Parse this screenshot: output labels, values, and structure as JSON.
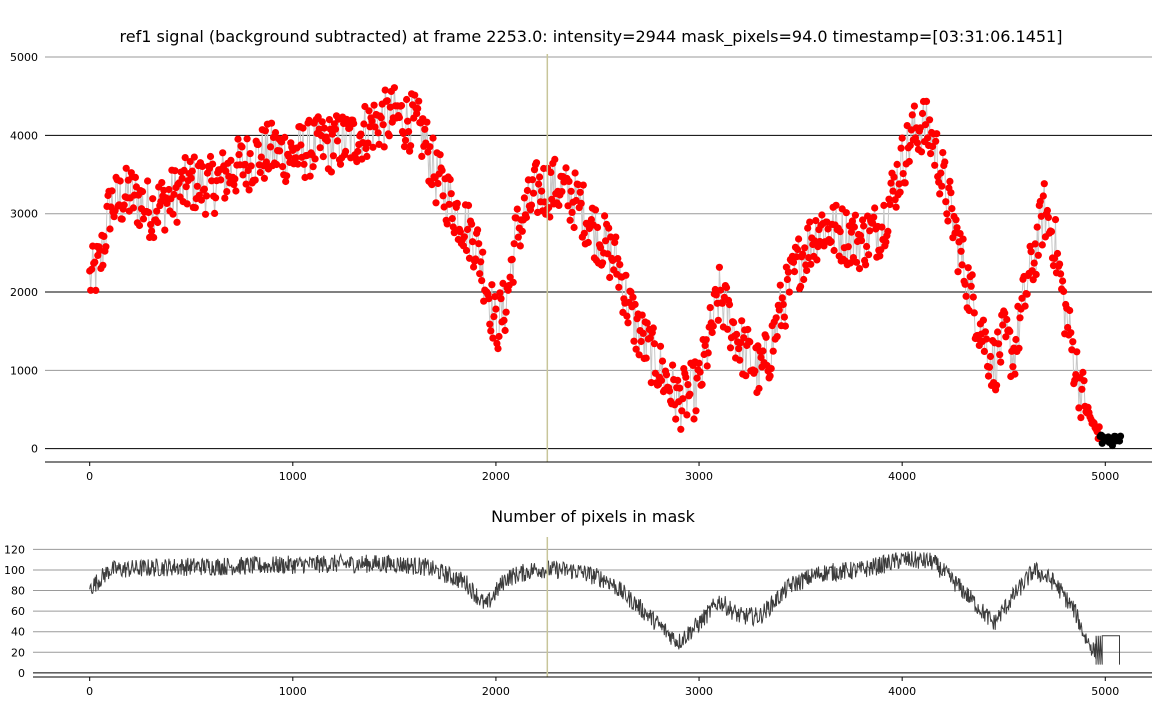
{
  "chart_data": [
    {
      "type": "scatter",
      "title": "ref1 signal (background subtracted) at frame 2253.0: intensity=2944 mask_pixels=94.0 timestamp=[03:31:06.1451]",
      "xlim": [
        -220,
        5230
      ],
      "ylim": [
        -170,
        5090
      ],
      "xticks": [
        0,
        1000,
        2000,
        3000,
        4000,
        5000
      ],
      "yticks": [
        0,
        1000,
        2000,
        3000,
        4000,
        5000
      ],
      "grid": "horizontal",
      "cursor_frame": 2253,
      "marker_color": "#ff0000",
      "line_color": "#c8c8c8",
      "tail_color": "#000000",
      "tail_start_frame": 4975,
      "noise_amplitude": 380,
      "envelope": [
        [
          0,
          2150
        ],
        [
          50,
          2350
        ],
        [
          100,
          3100
        ],
        [
          200,
          3250
        ],
        [
          300,
          3050
        ],
        [
          400,
          3200
        ],
        [
          500,
          3400
        ],
        [
          600,
          3350
        ],
        [
          700,
          3550
        ],
        [
          800,
          3700
        ],
        [
          900,
          3800
        ],
        [
          1000,
          3750
        ],
        [
          1100,
          3850
        ],
        [
          1200,
          3900
        ],
        [
          1300,
          3950
        ],
        [
          1400,
          4150
        ],
        [
          1500,
          4250
        ],
        [
          1600,
          4150
        ],
        [
          1650,
          3950
        ],
        [
          1700,
          3500
        ],
        [
          1800,
          3050
        ],
        [
          1900,
          2650
        ],
        [
          1950,
          2150
        ],
        [
          2000,
          1550
        ],
        [
          2050,
          1850
        ],
        [
          2100,
          2750
        ],
        [
          2200,
          3300
        ],
        [
          2300,
          3350
        ],
        [
          2350,
          3250
        ],
        [
          2400,
          3150
        ],
        [
          2500,
          2750
        ],
        [
          2600,
          2350
        ],
        [
          2650,
          1850
        ],
        [
          2700,
          1500
        ],
        [
          2800,
          1050
        ],
        [
          2900,
          600
        ],
        [
          2950,
          700
        ],
        [
          3000,
          800
        ],
        [
          3050,
          1400
        ],
        [
          3100,
          1950
        ],
        [
          3150,
          1650
        ],
        [
          3200,
          1350
        ],
        [
          3300,
          950
        ],
        [
          3350,
          1250
        ],
        [
          3400,
          1750
        ],
        [
          3500,
          2450
        ],
        [
          3600,
          2850
        ],
        [
          3700,
          2750
        ],
        [
          3800,
          2650
        ],
        [
          3900,
          2850
        ],
        [
          4000,
          3650
        ],
        [
          4050,
          4000
        ],
        [
          4100,
          4150
        ],
        [
          4150,
          3950
        ],
        [
          4200,
          3450
        ],
        [
          4300,
          2350
        ],
        [
          4350,
          1850
        ],
        [
          4400,
          1450
        ],
        [
          4450,
          1050
        ],
        [
          4500,
          1400
        ],
        [
          4550,
          1200
        ],
        [
          4600,
          1900
        ],
        [
          4650,
          2450
        ],
        [
          4700,
          3050
        ],
        [
          4750,
          2650
        ],
        [
          4800,
          1800
        ],
        [
          4850,
          1100
        ],
        [
          4900,
          550
        ],
        [
          4950,
          250
        ],
        [
          5000,
          120
        ],
        [
          5075,
          100
        ]
      ]
    },
    {
      "type": "line",
      "title": "Number of pixels in mask",
      "xlim": [
        -220,
        5230
      ],
      "ylim": [
        -4,
        132
      ],
      "xticks": [
        0,
        1000,
        2000,
        3000,
        4000,
        5000
      ],
      "yticks": [
        0,
        20,
        40,
        60,
        80,
        100,
        120
      ],
      "grid": "horizontal",
      "cursor_frame": 2253,
      "line_color": "#3c3c3c",
      "noise_amplitude": 9,
      "drop_frames": [
        4955,
        5070
      ],
      "drop_range": [
        8,
        36
      ],
      "envelope": [
        [
          0,
          82
        ],
        [
          100,
          100
        ],
        [
          400,
          103
        ],
        [
          800,
          104
        ],
        [
          1200,
          106
        ],
        [
          1500,
          106
        ],
        [
          1650,
          103
        ],
        [
          1750,
          96
        ],
        [
          1850,
          88
        ],
        [
          1950,
          65
        ],
        [
          2050,
          92
        ],
        [
          2200,
          101
        ],
        [
          2400,
          99
        ],
        [
          2550,
          90
        ],
        [
          2700,
          65
        ],
        [
          2850,
          38
        ],
        [
          2900,
          30
        ],
        [
          3000,
          48
        ],
        [
          3100,
          70
        ],
        [
          3200,
          55
        ],
        [
          3300,
          55
        ],
        [
          3450,
          85
        ],
        [
          3600,
          97
        ],
        [
          3800,
          100
        ],
        [
          4000,
          110
        ],
        [
          4150,
          108
        ],
        [
          4300,
          80
        ],
        [
          4450,
          48
        ],
        [
          4550,
          75
        ],
        [
          4650,
          100
        ],
        [
          4750,
          88
        ],
        [
          4850,
          60
        ],
        [
          4900,
          35
        ],
        [
          4950,
          20
        ],
        [
          5000,
          36
        ],
        [
          5075,
          36
        ]
      ]
    }
  ]
}
